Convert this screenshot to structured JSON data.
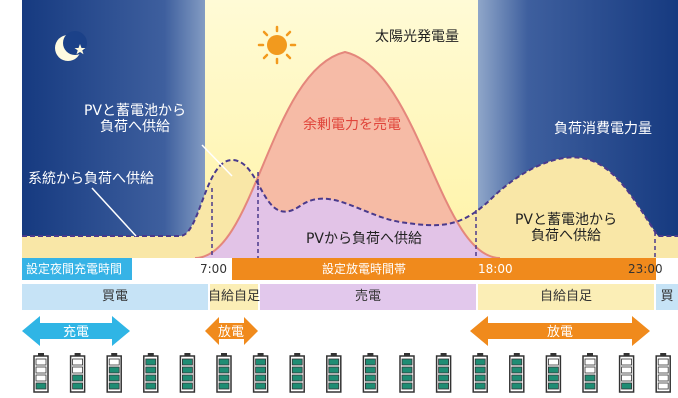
{
  "texts": {
    "solar_generation": "太陽光発電量",
    "sell_surplus": "余剰電力を売電",
    "load_consumption": "負荷消費電力量",
    "pv_battery_to_load_left": "PVと蓄電池から\n負荷へ供給",
    "grid_to_load": "系統から負荷へ供給",
    "pv_to_load": "PVから負荷へ供給",
    "pv_battery_to_load_right": "PVと蓄電池から\n負荷へ供給"
  },
  "timeline": {
    "night_charge_label": "設定夜間充電時間",
    "discharge_band_label": "設定放電時間帯",
    "t_start": "7:00",
    "t_mid": "18:00",
    "t_end": "23:00"
  },
  "modes": [
    {
      "label": "買電",
      "color": "#c6e3f6"
    },
    {
      "label": "自給自足",
      "color": "#fbeeb6"
    },
    {
      "label": "売電",
      "color": "#e2c8ec"
    },
    {
      "label": "自給自足",
      "color": "#fbeeb6"
    },
    {
      "label": "買",
      "color": "#c6e3f6"
    }
  ],
  "arrows": {
    "charge": "充電",
    "discharge_short": "放電",
    "discharge_long": "放電"
  },
  "battery_levels": [
    0.2,
    0.5,
    0.75,
    1.0,
    1.0,
    1.0,
    1.0,
    1.0,
    1.0,
    1.0,
    1.0,
    1.0,
    1.0,
    1.0,
    0.75,
    0.5,
    0.2,
    0.0,
    0.0
  ],
  "colors": {
    "night_sky": "#173f86",
    "daylight": "#fff7b8",
    "solar_fill": "#f5b5a4",
    "solar_line": "#e4877c",
    "load_fill": "#f9e7a7",
    "pv_overlap": "#e2c3e7",
    "timeline_blue": "#36b3e6",
    "timeline_orange": "#f08a1c",
    "charge_arrow": "#2fb5e5",
    "discharge_arrow": "#f08a1c",
    "battery_green": "#1f8d74"
  }
}
